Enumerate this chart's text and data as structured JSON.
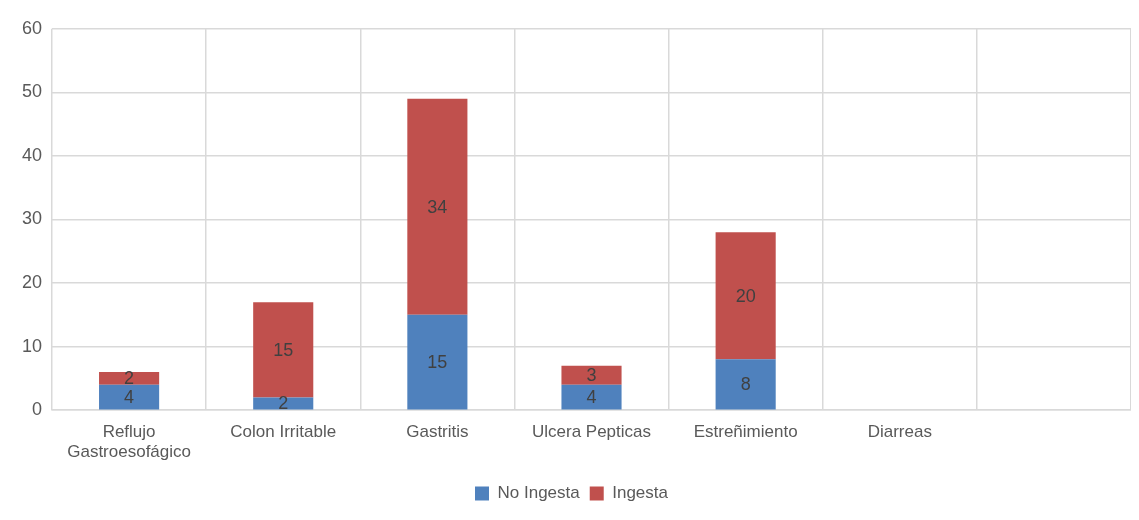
{
  "chart_data": {
    "type": "bar",
    "stacked": true,
    "categories": [
      "Reflujo Gastroesofágico",
      "Colon Irritable",
      "Gastritis",
      "Ulcera Pepticas",
      "Estreñimiento",
      "Diarreas",
      null
    ],
    "series": [
      {
        "name": "No Ingesta",
        "color": "#4f81bd",
        "values": [
          4,
          2,
          15,
          4,
          8,
          null,
          null
        ]
      },
      {
        "name": "Ingesta",
        "color": "#c0504d",
        "values": [
          2,
          15,
          34,
          3,
          20,
          null,
          null
        ]
      }
    ],
    "ylim": [
      0,
      60
    ],
    "yticks": [
      0,
      10,
      20,
      30,
      40,
      50,
      60
    ],
    "grid": true,
    "legend": "bottom",
    "data_labels": true
  }
}
